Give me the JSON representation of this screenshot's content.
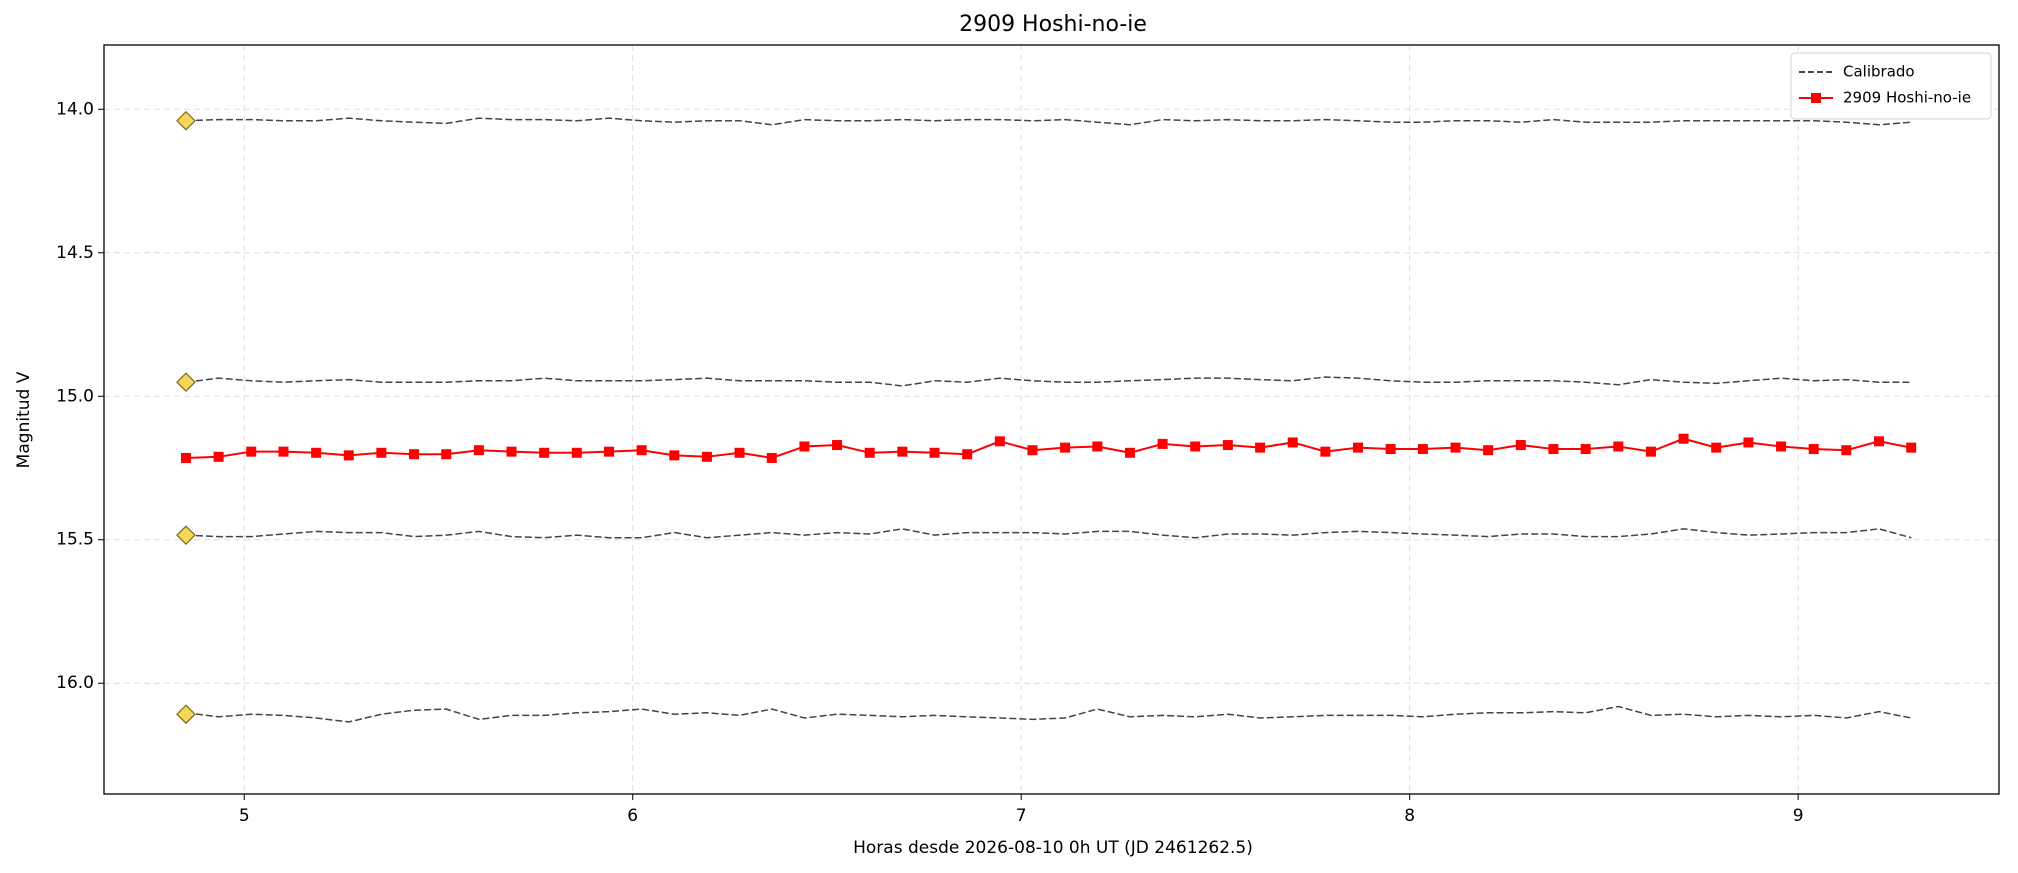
{
  "chart_data": {
    "type": "line",
    "title": "2909 Hoshi-no-ie",
    "xlabel": "Horas desde 2026-08-10 0h UT (JD 2461262.5)",
    "ylabel": "Magnitud V",
    "xlim": [
      4.639,
      9.517
    ],
    "ylim": [
      16.386,
      13.776
    ],
    "invert_y": true,
    "xticks": [
      5,
      6,
      7,
      8,
      9
    ],
    "yticks": [
      {
        "value": 14,
        "label": "14.0"
      },
      {
        "value": 14.5,
        "label": "14.5"
      },
      {
        "value": 15,
        "label": "15.0"
      },
      {
        "value": 15.5,
        "label": "15.5"
      },
      {
        "value": 16,
        "label": "16.0"
      }
    ],
    "grid": true,
    "legend": "upper right",
    "x": [
      4.85,
      4.934,
      5.018,
      5.101,
      5.185,
      5.269,
      5.353,
      5.437,
      5.52,
      5.604,
      5.688,
      5.772,
      5.856,
      5.939,
      6.023,
      6.107,
      6.191,
      6.275,
      6.358,
      6.442,
      6.526,
      6.61,
      6.694,
      6.777,
      6.861,
      6.945,
      7.029,
      7.113,
      7.196,
      7.28,
      7.364,
      7.448,
      7.532,
      7.615,
      7.699,
      7.783,
      7.867,
      7.951,
      8.034,
      8.118,
      8.202,
      8.286,
      8.37,
      8.453,
      8.537,
      8.621,
      8.705,
      8.789,
      8.872,
      8.956,
      9.04,
      9.124,
      9.208,
      9.291
    ],
    "series": [
      {
        "name": "Calibrado",
        "color": "#444444",
        "style": "dashed",
        "values": [
          14.04,
          14.036,
          14.036,
          14.04,
          14.04,
          14.031,
          14.04,
          14.045,
          14.049,
          14.031,
          14.036,
          14.036,
          14.04,
          14.031,
          14.04,
          14.045,
          14.04,
          14.04,
          14.054,
          14.036,
          14.04,
          14.04,
          14.036,
          14.04,
          14.036,
          14.036,
          14.04,
          14.036,
          14.045,
          14.054,
          14.036,
          14.04,
          14.036,
          14.04,
          14.04,
          14.036,
          14.04,
          14.045,
          14.045,
          14.04,
          14.04,
          14.045,
          14.036,
          14.045,
          14.045,
          14.045,
          14.04,
          14.04,
          14.04,
          14.04,
          14.04,
          14.045,
          14.054,
          14.045
        ]
      },
      {
        "color": "#444444",
        "style": "dashed",
        "values": [
          14.951,
          14.937,
          14.946,
          14.951,
          14.946,
          14.942,
          14.951,
          14.951,
          14.951,
          14.946,
          14.946,
          14.937,
          14.946,
          14.946,
          14.946,
          14.942,
          14.937,
          14.946,
          14.946,
          14.946,
          14.951,
          14.951,
          14.964,
          14.946,
          14.951,
          14.937,
          14.946,
          14.951,
          14.951,
          14.946,
          14.942,
          14.937,
          14.937,
          14.942,
          14.946,
          14.933,
          14.937,
          14.946,
          14.951,
          14.951,
          14.946,
          14.946,
          14.946,
          14.951,
          14.96,
          14.942,
          14.951,
          14.955,
          14.946,
          14.937,
          14.946,
          14.942,
          14.951,
          14.951
        ]
      },
      {
        "color": "#444444",
        "style": "dashed",
        "values": [
          15.484,
          15.489,
          15.489,
          15.48,
          15.471,
          15.475,
          15.475,
          15.489,
          15.484,
          15.471,
          15.489,
          15.493,
          15.484,
          15.493,
          15.493,
          15.475,
          15.493,
          15.484,
          15.475,
          15.484,
          15.475,
          15.48,
          15.462,
          15.484,
          15.475,
          15.475,
          15.475,
          15.48,
          15.471,
          15.471,
          15.484,
          15.493,
          15.48,
          15.48,
          15.484,
          15.475,
          15.471,
          15.475,
          15.48,
          15.484,
          15.489,
          15.48,
          15.48,
          15.489,
          15.489,
          15.48,
          15.462,
          15.475,
          15.484,
          15.48,
          15.475,
          15.475,
          15.462,
          15.493
        ]
      },
      {
        "color": "#444444",
        "style": "dashed",
        "values": [
          16.103,
          16.117,
          16.108,
          16.112,
          16.121,
          16.135,
          16.108,
          16.094,
          16.09,
          16.126,
          16.112,
          16.112,
          16.103,
          16.099,
          16.09,
          16.108,
          16.103,
          16.112,
          16.09,
          16.121,
          16.108,
          16.112,
          16.117,
          16.112,
          16.117,
          16.121,
          16.126,
          16.121,
          16.09,
          16.117,
          16.112,
          16.117,
          16.108,
          16.121,
          16.117,
          16.112,
          16.112,
          16.112,
          16.117,
          16.108,
          16.103,
          16.103,
          16.099,
          16.103,
          16.081,
          16.112,
          16.108,
          16.117,
          16.112,
          16.117,
          16.112,
          16.121,
          16.099,
          16.121
        ]
      },
      {
        "name": "2909 Hoshi-no-ie",
        "color": "#ff0000",
        "style": "solid",
        "marker": "square",
        "values": [
          15.215,
          15.211,
          15.193,
          15.193,
          15.197,
          15.206,
          15.197,
          15.202,
          15.202,
          15.188,
          15.193,
          15.197,
          15.197,
          15.193,
          15.188,
          15.206,
          15.211,
          15.197,
          15.215,
          15.175,
          15.17,
          15.197,
          15.193,
          15.197,
          15.202,
          15.157,
          15.188,
          15.179,
          15.175,
          15.197,
          15.166,
          15.175,
          15.17,
          15.179,
          15.161,
          15.193,
          15.179,
          15.184,
          15.184,
          15.179,
          15.188,
          15.17,
          15.184,
          15.184,
          15.175,
          15.193,
          15.148,
          15.179,
          15.161,
          15.175,
          15.184,
          15.188,
          15.157,
          15.179
        ]
      }
    ],
    "reference_markers": {
      "color": "#f5d85a",
      "values": [
        14.04,
        14.951,
        15.484,
        16.108
      ]
    }
  }
}
